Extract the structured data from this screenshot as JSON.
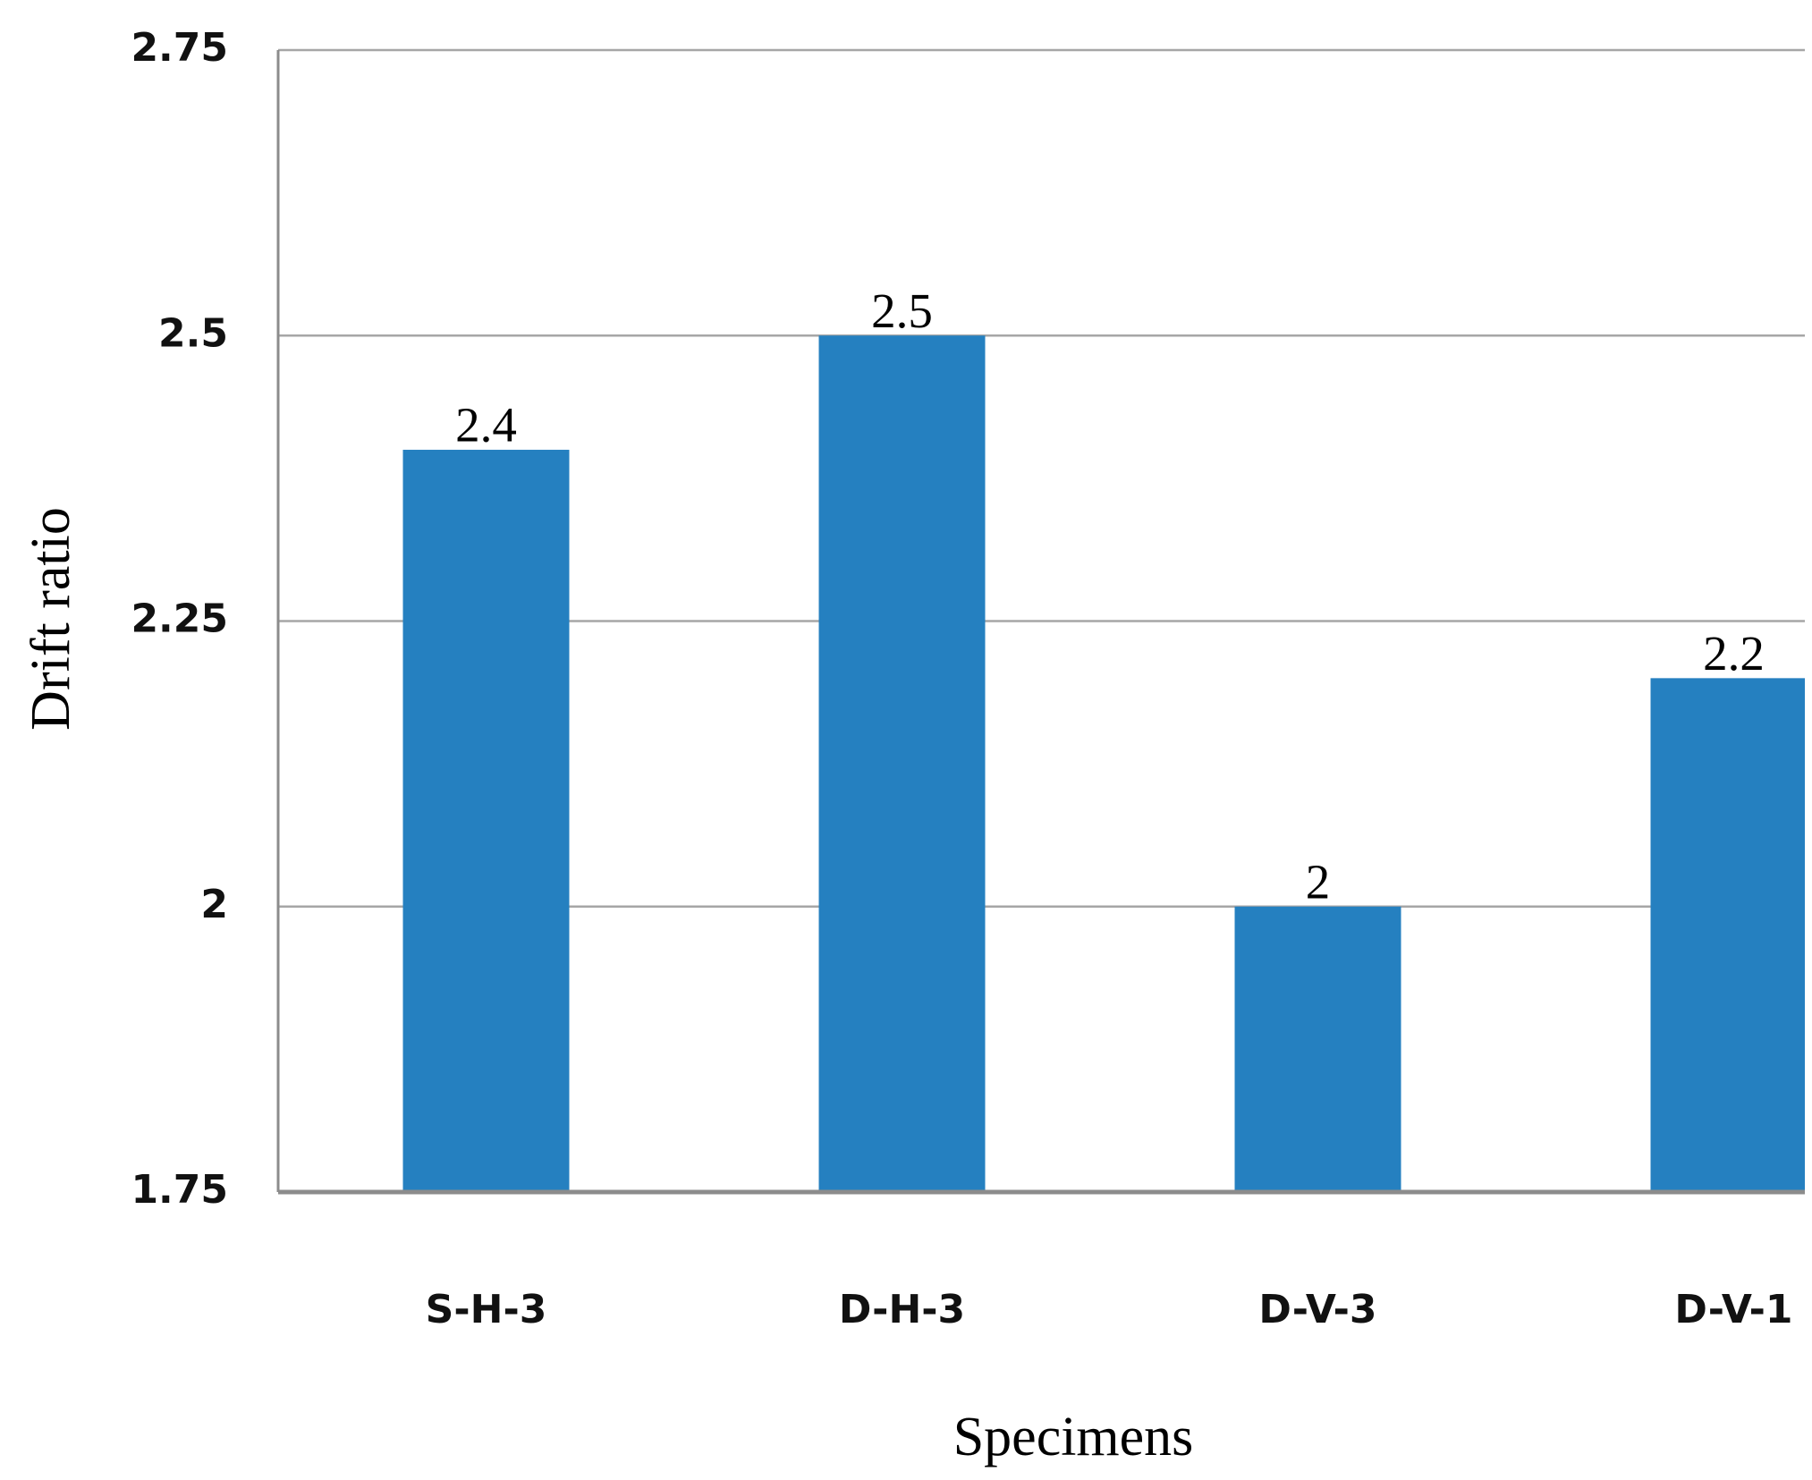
{
  "chart_data": {
    "type": "bar",
    "x_label": "Specimens",
    "y_label": "Drift ratio",
    "categories": [
      "S-H-3",
      "D-H-3",
      "D-V-3",
      "D-V-1"
    ],
    "values": [
      2.4,
      2.5,
      2,
      2.2
    ],
    "color": "#2580c0",
    "ylim": [
      1.75,
      2.75
    ],
    "yticks": [
      1.75,
      2,
      2.25,
      2.5,
      2.75
    ],
    "grid": true
  }
}
